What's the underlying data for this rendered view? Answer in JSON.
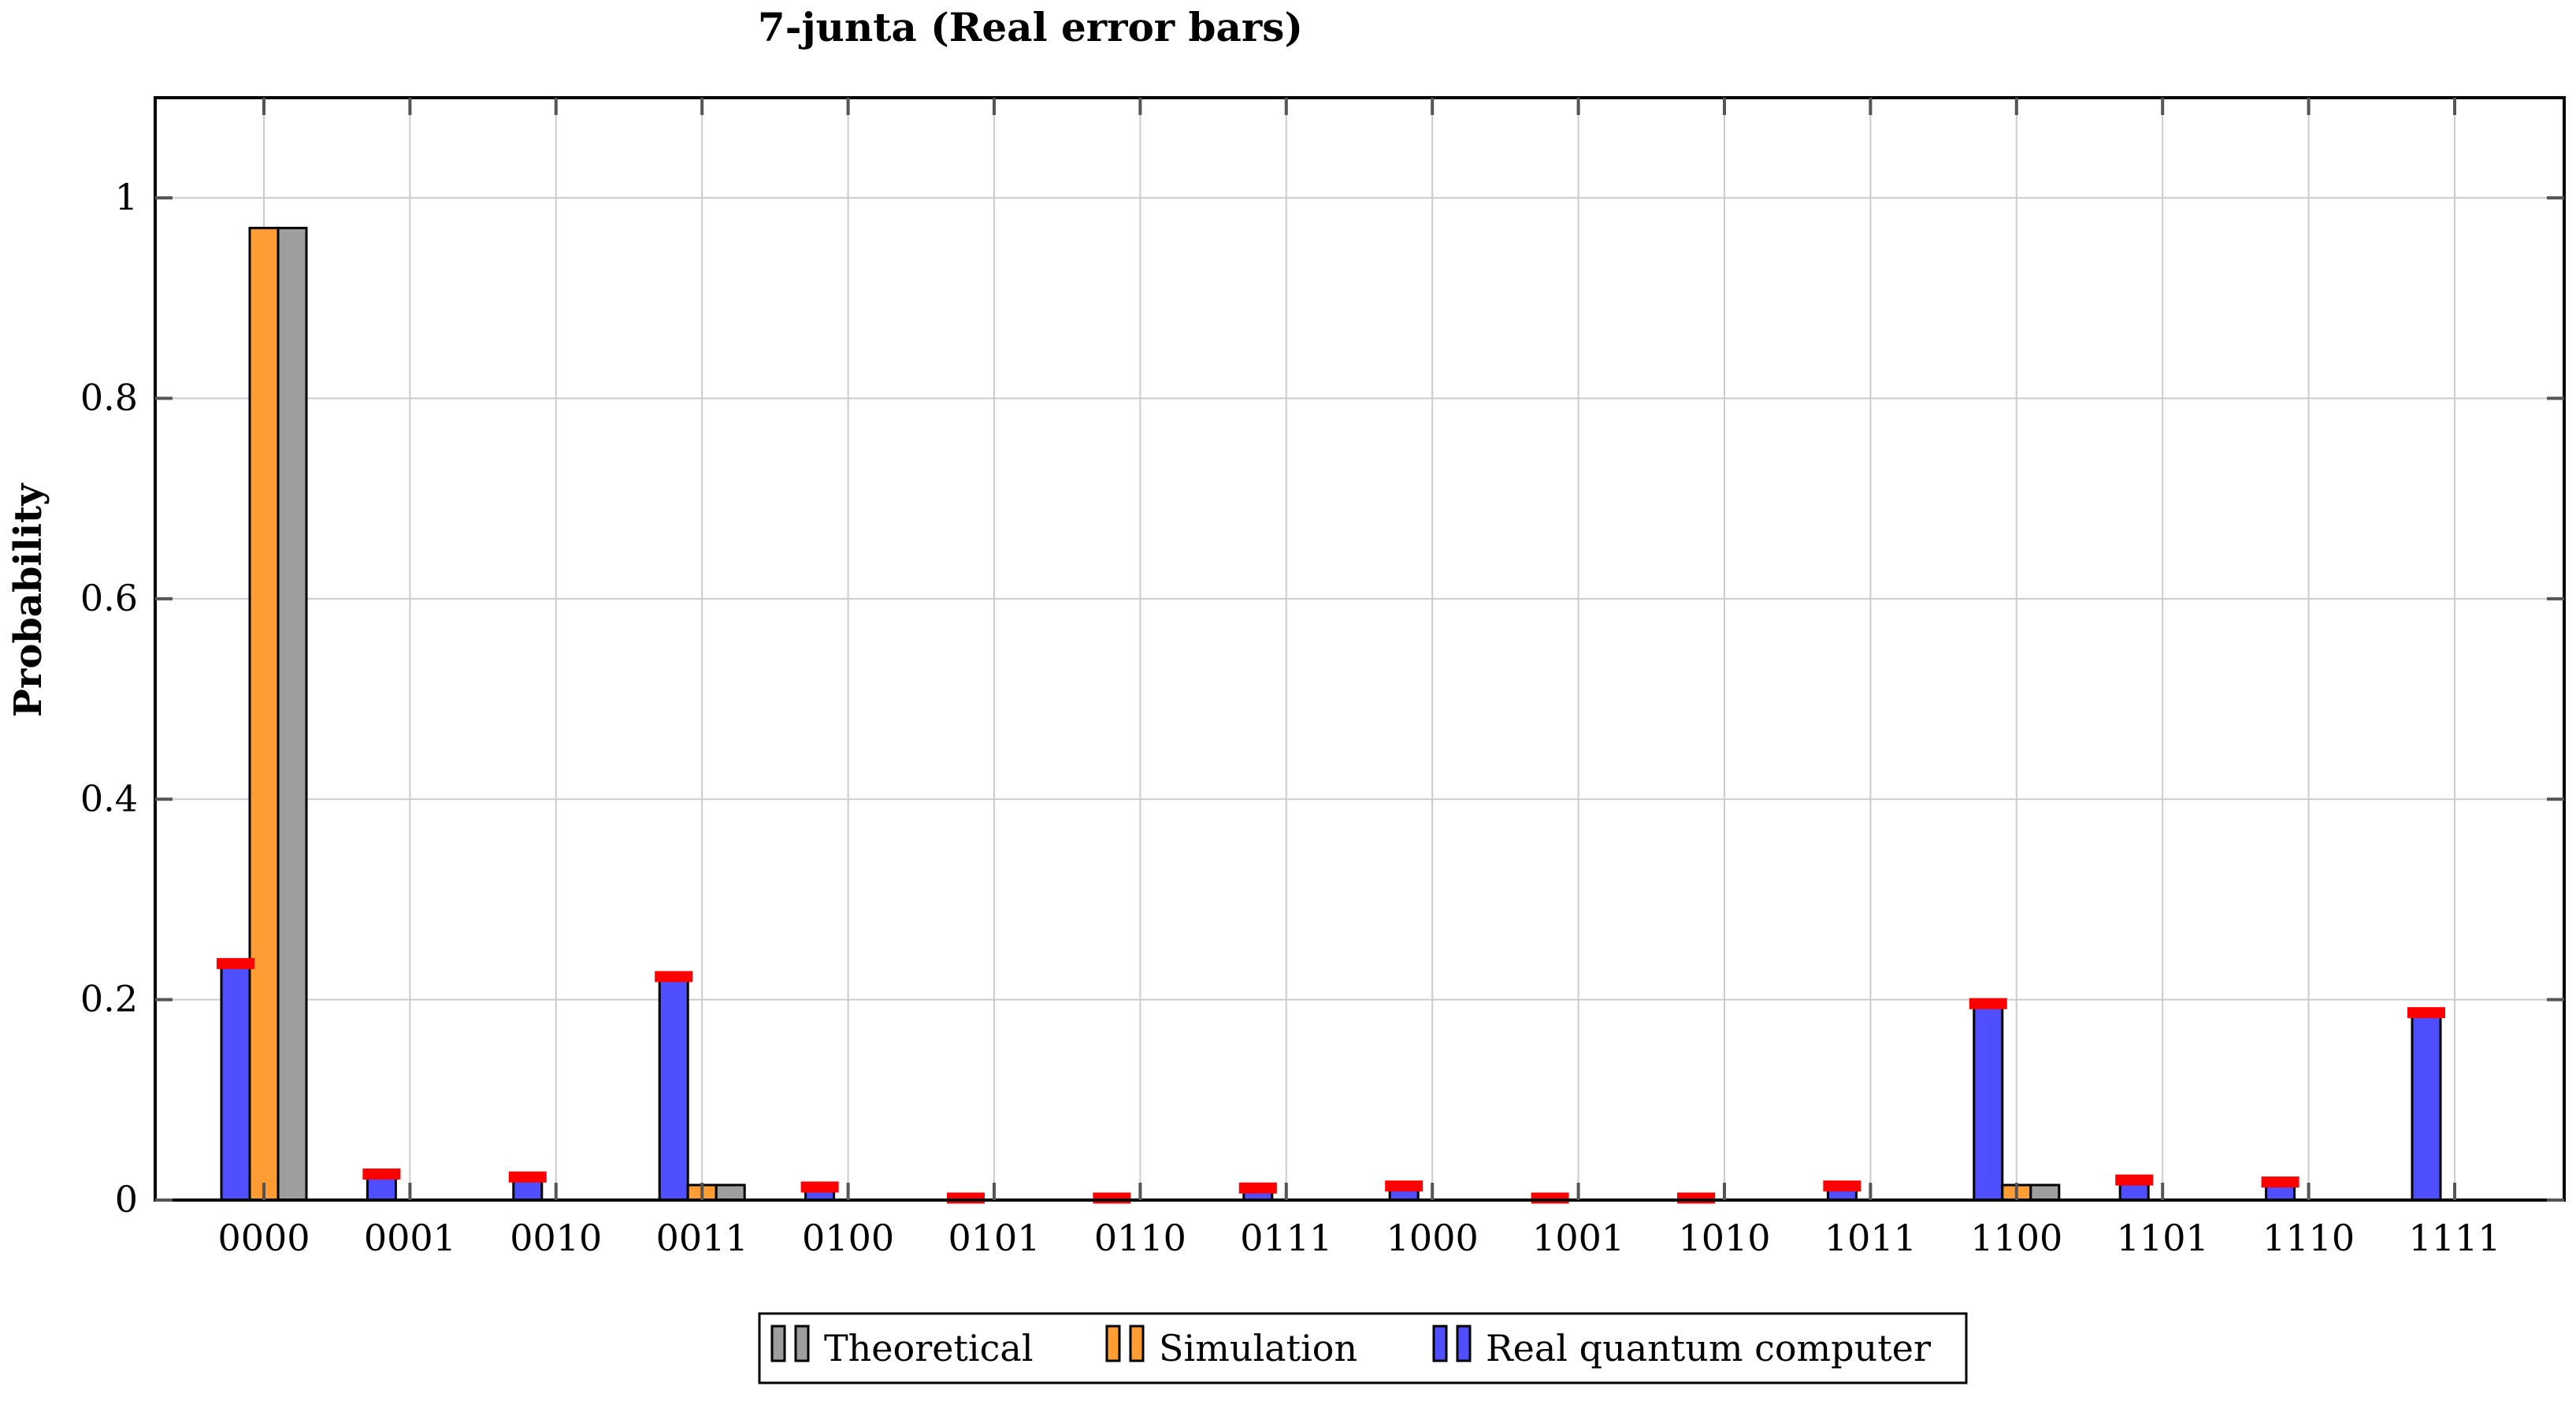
{
  "chart_data": {
    "type": "bar",
    "title": "7-junta (Real error bars)",
    "xlabel": "",
    "ylabel": "Probability",
    "ylim": [
      0,
      1.1
    ],
    "yticks": [
      0,
      0.2,
      0.4,
      0.6,
      0.8,
      1
    ],
    "ytick_labels": [
      "0",
      "0.2",
      "0.4",
      "0.6",
      "0.8",
      "1"
    ],
    "grid": true,
    "legend_position": "bottom-center",
    "categories": [
      "0000",
      "0001",
      "0010",
      "0011",
      "0100",
      "0101",
      "0110",
      "0111",
      "1000",
      "1001",
      "1010",
      "1011",
      "1100",
      "1101",
      "1110",
      "1111"
    ],
    "series": [
      {
        "name": "Real quantum computer",
        "color": "#4f4fff",
        "values": [
          0.236,
          0.026,
          0.023,
          0.223,
          0.013,
          0.002,
          0.002,
          0.012,
          0.014,
          0.002,
          0.002,
          0.014,
          0.196,
          0.02,
          0.018,
          0.187
        ],
        "error_color": "#ff0000"
      },
      {
        "name": "Simulation",
        "color": "#ff9c33",
        "values": [
          0.97,
          0,
          0,
          0.015,
          0,
          0,
          0,
          0,
          0,
          0,
          0,
          0,
          0.015,
          0,
          0,
          0
        ]
      },
      {
        "name": "Theoretical",
        "color": "#9e9e9e",
        "values": [
          0.97,
          0,
          0,
          0.015,
          0,
          0,
          0,
          0,
          0,
          0,
          0,
          0,
          0.015,
          0,
          0,
          0
        ]
      }
    ],
    "legend": [
      "Theoretical",
      "Simulation",
      "Real quantum computer"
    ]
  }
}
